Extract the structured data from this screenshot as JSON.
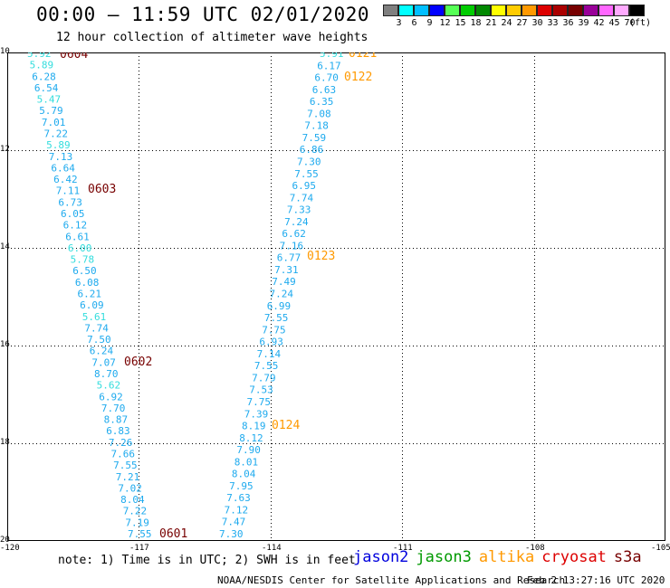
{
  "header": {
    "title": "00:00 – 11:59 UTC 02/01/2020",
    "subtitle": "12 hour collection of altimeter wave heights"
  },
  "colorbar": {
    "colors": [
      "#7f7f7f",
      "#00ffff",
      "#00bfff",
      "#0000ff",
      "#55ff55",
      "#00cc00",
      "#008800",
      "#ffff00",
      "#ffcc00",
      "#ff9900",
      "#dd0000",
      "#aa0000",
      "#770000",
      "#990099",
      "#ff66ff",
      "#ffaaff",
      "#000000"
    ],
    "labels": [
      "3",
      "6",
      "9",
      "12",
      "15",
      "18",
      "21",
      "24",
      "27",
      "30",
      "33",
      "36",
      "39",
      "42",
      "45",
      "70",
      "(ft)"
    ]
  },
  "map": {
    "lat_labels": [
      "10",
      "12",
      "14",
      "16",
      "18",
      "20"
    ],
    "lon_labels": [
      "-120",
      "-117",
      "-114",
      "-111",
      "-108",
      "-105"
    ]
  },
  "tracks": [
    {
      "name": "left",
      "values": [
        "5.92",
        "5.89",
        "6.28",
        "6.54",
        "5.47",
        "5.79",
        "7.01",
        "7.22",
        "5.89",
        "7.13",
        "6.64",
        "6.42",
        "7.11",
        "6.73",
        "6.05",
        "6.12",
        "6.61",
        "6.00",
        "5.78",
        "6.50",
        "6.08",
        "6.21",
        "6.09",
        "5.61",
        "7.74",
        "7.50",
        "6.24",
        "7.07",
        "8.70",
        "5.62",
        "6.92",
        "7.70",
        "8.87",
        "6.83",
        "7.26",
        "7.66",
        "7.55",
        "7.21",
        "7.02",
        "8.04",
        "7.22",
        "7.19",
        "7.55"
      ],
      "colors": [
        "#33dddd",
        "#33dddd",
        "#1eaaee",
        "#1eaaee",
        "#33dddd",
        "#1eaaee",
        "#1eaaee",
        "#1eaaee",
        "#33dddd",
        "#1eaaee",
        "#1eaaee",
        "#1eaaee",
        "#1eaaee",
        "#1eaaee",
        "#1eaaee",
        "#1eaaee",
        "#1eaaee",
        "#33dddd",
        "#33dddd",
        "#1eaaee",
        "#1eaaee",
        "#1eaaee",
        "#1eaaee",
        "#33dddd",
        "#1eaaee",
        "#1eaaee",
        "#1eaaee",
        "#1eaaee",
        "#1eaaee",
        "#33dddd",
        "#1eaaee",
        "#1eaaee",
        "#1eaaee",
        "#1eaaee",
        "#1eaaee",
        "#1eaaee",
        "#1eaaee",
        "#1eaaee",
        "#1eaaee",
        "#1eaaee",
        "#1eaaee",
        "#1eaaee",
        "#1eaaee"
      ]
    },
    {
      "name": "right",
      "values": [
        "5.91",
        "6.17",
        "6.70",
        "6.63",
        "6.35",
        "7.08",
        "7.18",
        "7.59",
        "6.86",
        "7.30",
        "7.55",
        "6.95",
        "7.74",
        "7.33",
        "7.24",
        "6.62",
        "7.16",
        "6.77",
        "7.31",
        "7.49",
        "7.24",
        "6.99",
        "7.55",
        "7.75",
        "6.93",
        "7.14",
        "7.55",
        "7.79",
        "7.53",
        "7.75",
        "7.39",
        "8.19",
        "8.12",
        "7.90",
        "8.01",
        "8.04",
        "7.95",
        "7.63",
        "7.12",
        "7.47",
        "7.30"
      ],
      "colors": [
        "#33dddd",
        "#1eaaee",
        "#1eaaee",
        "#1eaaee",
        "#1eaaee",
        "#1eaaee",
        "#1eaaee",
        "#1eaaee",
        "#1eaaee",
        "#1eaaee",
        "#1eaaee",
        "#1eaaee",
        "#1eaaee",
        "#1eaaee",
        "#1eaaee",
        "#1eaaee",
        "#1eaaee",
        "#1eaaee",
        "#1eaaee",
        "#1eaaee",
        "#1eaaee",
        "#1eaaee",
        "#1eaaee",
        "#1eaaee",
        "#1eaaee",
        "#1eaaee",
        "#1eaaee",
        "#1eaaee",
        "#1eaaee",
        "#1eaaee",
        "#1eaaee",
        "#1eaaee",
        "#1eaaee",
        "#1eaaee",
        "#1eaaee",
        "#1eaaee",
        "#1eaaee",
        "#1eaaee",
        "#1eaaee",
        "#1eaaee",
        "#1eaaee"
      ]
    }
  ],
  "time_labels": [
    {
      "text": "0604",
      "color": "#770000"
    },
    {
      "text": "0603",
      "color": "#770000"
    },
    {
      "text": "0602",
      "color": "#770000"
    },
    {
      "text": "0601",
      "color": "#770000"
    },
    {
      "text": "0121",
      "color": "#ff9900"
    },
    {
      "text": "0122",
      "color": "#ff9900"
    },
    {
      "text": "0123",
      "color": "#ff9900"
    },
    {
      "text": "0124",
      "color": "#ff9900"
    }
  ],
  "note": "note: 1) Time is in UTC; 2) SWH is in feet",
  "legend": [
    {
      "label": "jason2",
      "color": "#0000dd"
    },
    {
      "label": "jason3",
      "color": "#009900"
    },
    {
      "label": "altika",
      "color": "#ff9900"
    },
    {
      "label": "cryosat",
      "color": "#dd0000"
    },
    {
      "label": "s3a",
      "color": "#770000"
    }
  ],
  "footer": {
    "credit": "NOAA/NESDIS Center for Satellite Applications and Research",
    "timestamp": "Feb  2 13:27:16 UTC 2020"
  }
}
